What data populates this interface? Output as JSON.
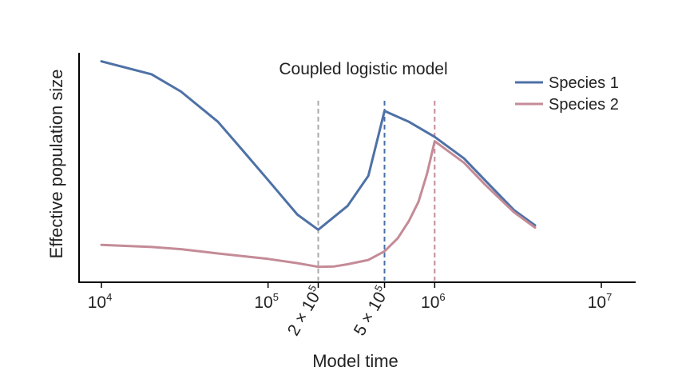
{
  "chart_data": {
    "type": "line",
    "title": "Coupled logistic model",
    "xlabel": "Model time",
    "ylabel": "Effective population size",
    "xscale": "log",
    "xlim": [
      7000,
      13000000
    ],
    "ylim": [
      0,
      1
    ],
    "grid": false,
    "legend_position": "top-right",
    "x_ticks": [
      {
        "base": "10",
        "exp": "4",
        "value": 10000
      },
      {
        "base": "10",
        "exp": "5",
        "value": 100000
      },
      {
        "base": "10",
        "exp": "6",
        "value": 1000000
      },
      {
        "base": "10",
        "exp": "7",
        "value": 10000000
      }
    ],
    "annotation_ticks": [
      {
        "label": "2 × 10",
        "exp": "5",
        "value": 200000
      },
      {
        "label": "5 × 10",
        "exp": "5",
        "value": 500000
      }
    ],
    "vlines": [
      {
        "x": 200000,
        "color": "#aaaaaa"
      },
      {
        "x": 500000,
        "color": "#4a6fa5"
      },
      {
        "x": 1000000,
        "color": "#c48b97"
      }
    ],
    "series": [
      {
        "name": "Species 1",
        "color": "#4e71a6",
        "points": [
          [
            10000,
            0.99
          ],
          [
            20000,
            0.93
          ],
          [
            30000,
            0.85
          ],
          [
            50000,
            0.71
          ],
          [
            70000,
            0.58
          ],
          [
            100000,
            0.44
          ],
          [
            150000,
            0.28
          ],
          [
            200000,
            0.21
          ],
          [
            300000,
            0.32
          ],
          [
            400000,
            0.46
          ],
          [
            500000,
            0.76
          ],
          [
            700000,
            0.71
          ],
          [
            1000000,
            0.64
          ],
          [
            1500000,
            0.54
          ],
          [
            2000000,
            0.44
          ],
          [
            3000000,
            0.3
          ],
          [
            4000000,
            0.23
          ]
        ]
      },
      {
        "name": "Species 2",
        "color": "#c48b97",
        "points": [
          [
            10000,
            0.14
          ],
          [
            20000,
            0.13
          ],
          [
            30000,
            0.12
          ],
          [
            50000,
            0.1
          ],
          [
            100000,
            0.075
          ],
          [
            150000,
            0.055
          ],
          [
            200000,
            0.038
          ],
          [
            250000,
            0.04
          ],
          [
            300000,
            0.05
          ],
          [
            400000,
            0.07
          ],
          [
            500000,
            0.11
          ],
          [
            600000,
            0.17
          ],
          [
            700000,
            0.25
          ],
          [
            800000,
            0.34
          ],
          [
            900000,
            0.47
          ],
          [
            1000000,
            0.62
          ],
          [
            1500000,
            0.52
          ],
          [
            2000000,
            0.42
          ],
          [
            3000000,
            0.29
          ],
          [
            4000000,
            0.22
          ]
        ]
      }
    ]
  }
}
